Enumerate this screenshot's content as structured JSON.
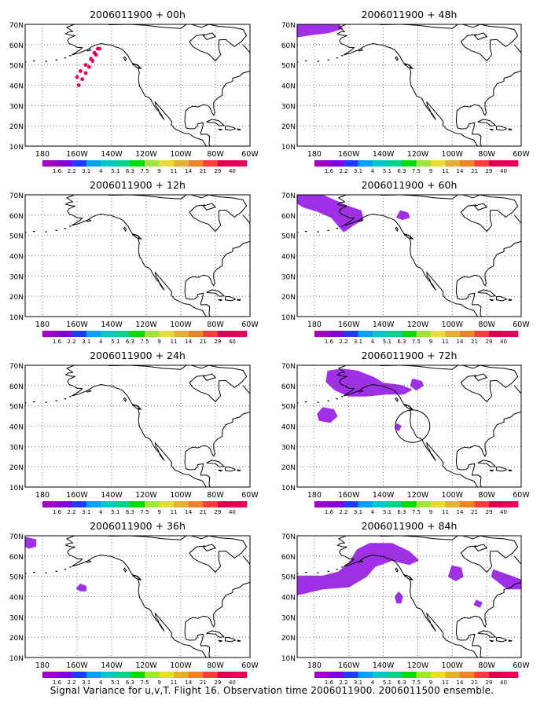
{
  "figure": {
    "caption": "Signal Variance for u,v,T. Flight 16. Observation time 2006011900. 2006011500 ensemble."
  },
  "legend": {
    "labels": [
      "1.6",
      "2.2",
      "3.1",
      "4",
      "5.1",
      "6.3",
      "7.5",
      "9",
      "11",
      "14",
      "21",
      "29",
      "40"
    ],
    "colors": [
      "#a000c8",
      "#8200dc",
      "#1e3cff",
      "#00a0ff",
      "#00c8c8",
      "#00d28c",
      "#00dc00",
      "#a0e632",
      "#e6dc32",
      "#e6af2d",
      "#f08228",
      "#fa3c3c",
      "#dc0050",
      "#e6005a"
    ]
  },
  "chart_data": [
    {
      "type": "heatmap",
      "title": "2006011900 + 00h",
      "x_ticks": [
        "180",
        "160W",
        "140W",
        "120W",
        "100W",
        "80W",
        "60W"
      ],
      "y_ticks": [
        "10N",
        "20N",
        "30N",
        "40N",
        "50N",
        "60N",
        "70N"
      ],
      "xlim": [
        -190,
        -60
      ],
      "ylim": [
        10,
        70
      ],
      "grid": true,
      "features": [
        {
          "kind": "flight_track",
          "points": [
            [
              -147,
              58
            ],
            [
              -149,
              55
            ],
            [
              -151,
              52
            ],
            [
              -153,
              49
            ],
            [
              -155,
              46
            ],
            [
              -157,
              43
            ],
            [
              -159,
              40
            ],
            [
              -160,
              44
            ],
            [
              -158,
              47
            ],
            [
              -155,
              50
            ],
            [
              -152,
              53
            ],
            [
              -150,
              56
            ],
            [
              -148,
              58
            ]
          ]
        }
      ]
    },
    {
      "type": "heatmap",
      "title": "2006011900 + 48h",
      "x_ticks": [
        "180",
        "160W",
        "140W",
        "120W",
        "100W",
        "80W",
        "60W"
      ],
      "y_ticks": [
        "10N",
        "20N",
        "30N",
        "40N",
        "50N",
        "60N",
        "70N"
      ],
      "xlim": [
        -190,
        -60
      ],
      "ylim": [
        10,
        70
      ],
      "grid": true,
      "features": [
        {
          "kind": "blob",
          "points": [
            [
              -190,
              70
            ],
            [
              -166,
              70
            ],
            [
              -164,
              68
            ],
            [
              -172,
              66
            ],
            [
              -182,
              65
            ],
            [
              -190,
              64
            ]
          ]
        }
      ]
    },
    {
      "type": "heatmap",
      "title": "2006011900 + 12h",
      "x_ticks": [
        "180",
        "160W",
        "140W",
        "120W",
        "100W",
        "80W",
        "60W"
      ],
      "y_ticks": [
        "10N",
        "20N",
        "30N",
        "40N",
        "50N",
        "60N",
        "70N"
      ],
      "xlim": [
        -190,
        -60
      ],
      "ylim": [
        10,
        70
      ],
      "grid": true,
      "features": []
    },
    {
      "type": "heatmap",
      "title": "2006011900 + 60h",
      "x_ticks": [
        "180",
        "160W",
        "140W",
        "120W",
        "100W",
        "80W",
        "60W"
      ],
      "y_ticks": [
        "10N",
        "20N",
        "30N",
        "40N",
        "50N",
        "60N",
        "70N"
      ],
      "xlim": [
        -190,
        -60
      ],
      "ylim": [
        10,
        70
      ],
      "grid": true,
      "features": [
        {
          "kind": "blob",
          "points": [
            [
              -190,
              70
            ],
            [
              -176,
              70
            ],
            [
              -168,
              67
            ],
            [
              -160,
              64
            ],
            [
              -153,
              62
            ],
            [
              -152,
              58
            ],
            [
              -158,
              55
            ],
            [
              -163,
              52
            ],
            [
              -166,
              55
            ],
            [
              -170,
              59
            ],
            [
              -178,
              62
            ],
            [
              -186,
              64
            ],
            [
              -190,
              66
            ]
          ]
        },
        {
          "kind": "blob",
          "points": [
            [
              -130,
              62
            ],
            [
              -126,
              61
            ],
            [
              -125,
              59
            ],
            [
              -129,
              58
            ],
            [
              -132,
              59
            ]
          ]
        }
      ]
    },
    {
      "type": "heatmap",
      "title": "2006011900 + 24h",
      "x_ticks": [
        "180",
        "160W",
        "140W",
        "120W",
        "100W",
        "80W",
        "60W"
      ],
      "y_ticks": [
        "10N",
        "20N",
        "30N",
        "40N",
        "50N",
        "60N",
        "70N"
      ],
      "xlim": [
        -190,
        -60
      ],
      "ylim": [
        10,
        70
      ],
      "grid": true,
      "features": []
    },
    {
      "type": "heatmap",
      "title": "2006011900 + 72h",
      "x_ticks": [
        "180",
        "160W",
        "140W",
        "120W",
        "100W",
        "80W",
        "60W"
      ],
      "y_ticks": [
        "10N",
        "20N",
        "30N",
        "40N",
        "50N",
        "60N",
        "70N"
      ],
      "xlim": [
        -190,
        -60
      ],
      "ylim": [
        10,
        70
      ],
      "grid": true,
      "features": [
        {
          "kind": "blob",
          "points": [
            [
              -172,
              67
            ],
            [
              -164,
              68
            ],
            [
              -155,
              67
            ],
            [
              -146,
              64
            ],
            [
              -140,
              61
            ],
            [
              -130,
              60
            ],
            [
              -124,
              58
            ],
            [
              -128,
              56
            ],
            [
              -138,
              56
            ],
            [
              -150,
              55
            ],
            [
              -160,
              55
            ],
            [
              -168,
              58
            ],
            [
              -173,
              62
            ]
          ]
        },
        {
          "kind": "blob",
          "points": [
            [
              -123,
              63
            ],
            [
              -118,
              62
            ],
            [
              -117,
              60
            ],
            [
              -121,
              58
            ],
            [
              -124,
              60
            ]
          ]
        },
        {
          "kind": "blob",
          "points": [
            [
              -175,
              49
            ],
            [
              -169,
              48
            ],
            [
              -167,
              45
            ],
            [
              -171,
              42
            ],
            [
              -177,
              43
            ],
            [
              -178,
              46
            ]
          ]
        },
        {
          "kind": "blob",
          "points": [
            [
              -132,
              41
            ],
            [
              -130,
              40
            ],
            [
              -131,
              38
            ],
            [
              -133,
              39
            ]
          ]
        },
        {
          "kind": "circle",
          "center": [
            -123,
            40
          ],
          "radius": 10
        }
      ]
    },
    {
      "type": "heatmap",
      "title": "2006011900 + 36h",
      "x_ticks": [
        "180",
        "160W",
        "140W",
        "120W",
        "100W",
        "80W",
        "60W"
      ],
      "y_ticks": [
        "10N",
        "20N",
        "30N",
        "40N",
        "50N",
        "60N",
        "70N"
      ],
      "xlim": [
        -190,
        -60
      ],
      "ylim": [
        10,
        70
      ],
      "grid": true,
      "features": [
        {
          "kind": "blob",
          "points": [
            [
              -190,
              69
            ],
            [
              -184,
              68
            ],
            [
              -184,
              65
            ],
            [
              -188,
              64
            ],
            [
              -190,
              65
            ]
          ]
        },
        {
          "kind": "blob",
          "points": [
            [
              -158,
              46
            ],
            [
              -155,
              45
            ],
            [
              -155,
              43
            ],
            [
              -158,
              43
            ],
            [
              -160,
              44
            ]
          ]
        }
      ]
    },
    {
      "type": "heatmap",
      "title": "2006011900 + 84h",
      "x_ticks": [
        "180",
        "160W",
        "140W",
        "120W",
        "100W",
        "80W",
        "60W"
      ],
      "y_ticks": [
        "10N",
        "20N",
        "30N",
        "40N",
        "50N",
        "60N",
        "70N"
      ],
      "xlim": [
        -190,
        -60
      ],
      "ylim": [
        10,
        70
      ],
      "grid": true,
      "features": [
        {
          "kind": "blob",
          "points": [
            [
              -190,
              50
            ],
            [
              -175,
              50
            ],
            [
              -166,
              52
            ],
            [
              -160,
              56
            ],
            [
              -155,
              63
            ],
            [
              -148,
              66
            ],
            [
              -135,
              66
            ],
            [
              -125,
              62
            ],
            [
              -120,
              58
            ],
            [
              -125,
              56
            ],
            [
              -135,
              58
            ],
            [
              -145,
              55
            ],
            [
              -150,
              50
            ],
            [
              -160,
              45
            ],
            [
              -175,
              44
            ],
            [
              -190,
              41
            ]
          ]
        },
        {
          "kind": "blob",
          "points": [
            [
              -100,
              55
            ],
            [
              -95,
              54
            ],
            [
              -94,
              50
            ],
            [
              -98,
              48
            ],
            [
              -102,
              50
            ]
          ]
        },
        {
          "kind": "blob",
          "points": [
            [
              -76,
              53
            ],
            [
              -66,
              50
            ],
            [
              -60,
              48
            ],
            [
              -60,
              44
            ],
            [
              -68,
              44
            ],
            [
              -74,
              48
            ],
            [
              -77,
              50
            ]
          ]
        },
        {
          "kind": "blob",
          "points": [
            [
              -131,
              42
            ],
            [
              -129,
              40
            ],
            [
              -130,
              37
            ],
            [
              -132,
              37
            ],
            [
              -133,
              40
            ]
          ]
        },
        {
          "kind": "blob",
          "points": [
            [
              -86,
              38
            ],
            [
              -83,
              37
            ],
            [
              -84,
              35
            ],
            [
              -87,
              36
            ]
          ]
        }
      ]
    }
  ]
}
